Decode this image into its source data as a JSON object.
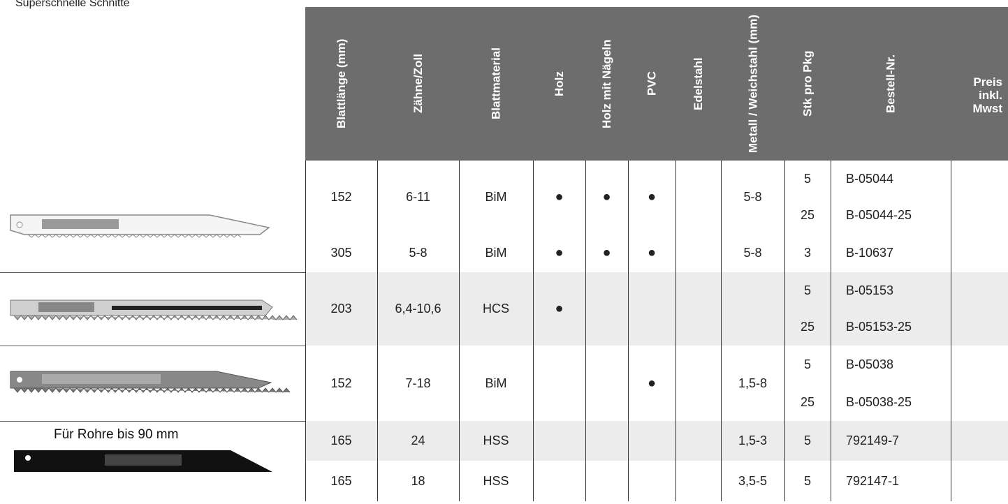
{
  "caption": "Superschnelle Schnitte",
  "note": "Für Rohre bis 90 mm",
  "table": {
    "columns": [
      "Blattlänge (mm)",
      "Zähne/Zoll",
      "Blattmaterial",
      "Holz",
      "Holz mit Nägeln",
      "PVC",
      "Edelstahl",
      "Metall / Weichstahl (mm)",
      "Stk pro Pkg",
      "Bestell-Nr.",
      "Preis inkl. Mwst"
    ],
    "rows": [
      {
        "cells": [
          152,
          "6-11",
          "BiM",
          "●",
          "●",
          "●",
          null,
          "5-8"
        ],
        "packs": [
          [
            5,
            "B-05044"
          ],
          [
            25,
            "B-05044-25"
          ]
        ]
      },
      {
        "cells": [
          305,
          "5-8",
          "BiM",
          "●",
          "●",
          "●",
          null,
          "5-8"
        ],
        "packs": [
          [
            3,
            "B-10637"
          ]
        ]
      },
      {
        "cells": [
          203,
          "6,4-10,6",
          "HCS",
          "●",
          null,
          null,
          null,
          null
        ],
        "packs": [
          [
            5,
            "B-05153"
          ],
          [
            25,
            "B-05153-25"
          ]
        ]
      },
      {
        "cells": [
          152,
          "7-18",
          "BiM",
          null,
          null,
          "●",
          null,
          "1,5-8"
        ],
        "packs": [
          [
            5,
            "B-05038"
          ],
          [
            25,
            "B-05038-25"
          ]
        ]
      },
      {
        "cells": [
          165,
          "24",
          "HSS",
          null,
          null,
          null,
          null,
          "1,5-3"
        ],
        "packs": [
          [
            5,
            "792149-7"
          ]
        ]
      },
      {
        "cells": [
          165,
          "18",
          "HSS",
          null,
          null,
          null,
          null,
          "3,5-5"
        ],
        "packs": [
          [
            5,
            "792147-1"
          ]
        ]
      }
    ]
  }
}
